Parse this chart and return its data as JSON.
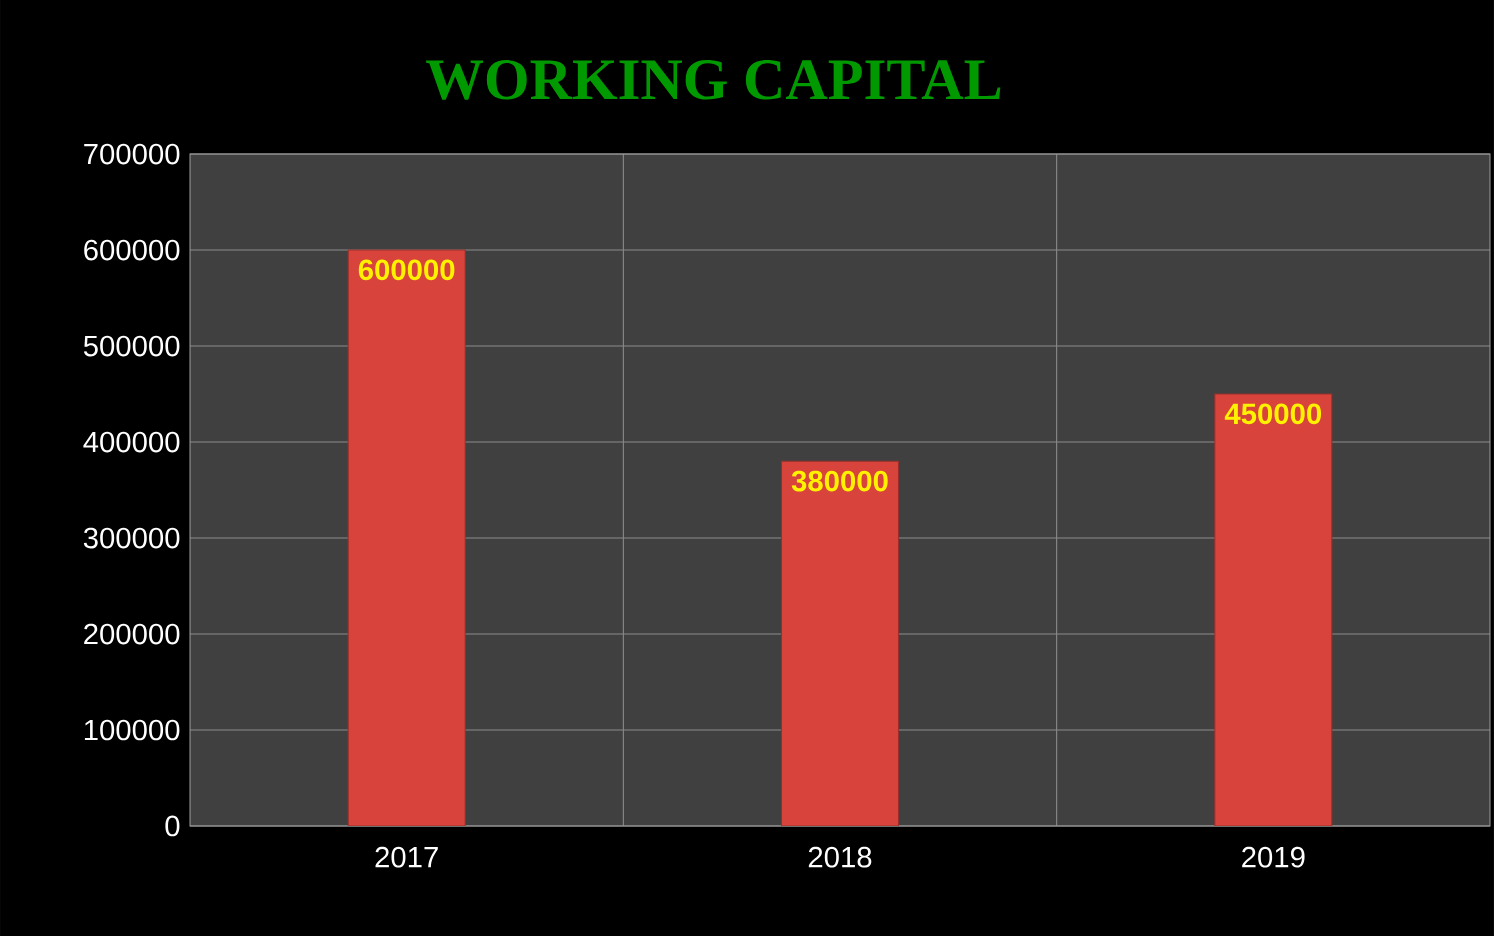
{
  "chart_data": {
    "type": "bar",
    "title": "WORKING CAPITAL",
    "categories": [
      "2017",
      "2018",
      "2019"
    ],
    "values": [
      600000,
      380000,
      450000
    ],
    "color": "#d8443c",
    "data_labels": true,
    "ylim": [
      0,
      700000
    ],
    "yticks": [
      0,
      100000,
      200000,
      300000,
      400000,
      500000,
      600000,
      700000
    ],
    "grid": true
  }
}
